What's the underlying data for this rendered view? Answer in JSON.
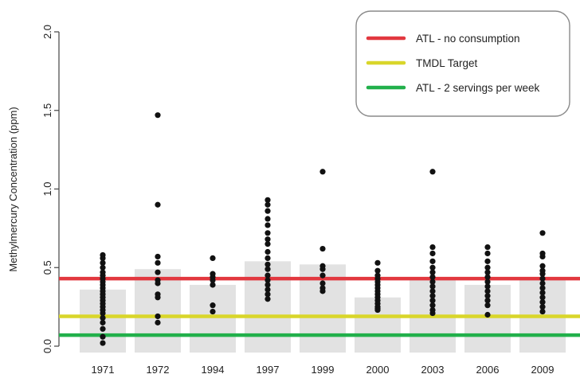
{
  "chart_data": {
    "type": "scatter",
    "ylabel": "Methylmercury Concentration (ppm)",
    "ylim": [
      0,
      2.0
    ],
    "yticks": [
      "0.0",
      "0.5",
      "1.0",
      "1.5",
      "2.0"
    ],
    "categories": [
      "1971",
      "1972",
      "1994",
      "1997",
      "1999",
      "2000",
      "2003",
      "2006",
      "2009"
    ],
    "bar_values": [
      0.36,
      0.49,
      0.39,
      0.54,
      0.52,
      0.31,
      0.42,
      0.39,
      0.42
    ],
    "points": [
      [
        0.58,
        0.56,
        0.53,
        0.5,
        0.47,
        0.45,
        0.43,
        0.41,
        0.39,
        0.37,
        0.35,
        0.33,
        0.31,
        0.29,
        0.27,
        0.25,
        0.23,
        0.21,
        0.18,
        0.15,
        0.11,
        0.06,
        0.02
      ],
      [
        1.47,
        0.9,
        0.57,
        0.53,
        0.47,
        0.42,
        0.4,
        0.33,
        0.31,
        0.19,
        0.15
      ],
      [
        0.56,
        0.46,
        0.44,
        0.42,
        0.39,
        0.26,
        0.22
      ],
      [
        0.93,
        0.9,
        0.86,
        0.81,
        0.77,
        0.72,
        0.68,
        0.65,
        0.6,
        0.56,
        0.52,
        0.49,
        0.45,
        0.42,
        0.39,
        0.36,
        0.33,
        0.3
      ],
      [
        1.11,
        0.62,
        0.51,
        0.49,
        0.45,
        0.4,
        0.37,
        0.35
      ],
      [
        0.53,
        0.48,
        0.45,
        0.43,
        0.41,
        0.39,
        0.37,
        0.35,
        0.33,
        0.31,
        0.29,
        0.27,
        0.25,
        0.24,
        0.23
      ],
      [
        1.11,
        0.63,
        0.59,
        0.54,
        0.5,
        0.47,
        0.44,
        0.41,
        0.38,
        0.35,
        0.32,
        0.29,
        0.26,
        0.23,
        0.21
      ],
      [
        0.63,
        0.59,
        0.54,
        0.5,
        0.47,
        0.44,
        0.41,
        0.38,
        0.35,
        0.32,
        0.29,
        0.26,
        0.2
      ],
      [
        0.72,
        0.59,
        0.57,
        0.51,
        0.48,
        0.46,
        0.43,
        0.4,
        0.37,
        0.34,
        0.31,
        0.28,
        0.25,
        0.22
      ]
    ],
    "reference_lines": [
      {
        "name": "ATL - no consumption",
        "value": 0.43,
        "color": "#e2383f"
      },
      {
        "name": "TMDL Target",
        "value": 0.19,
        "color": "#d9d62a"
      },
      {
        "name": "ATL - 2 servings per week",
        "value": 0.07,
        "color": "#22b04b"
      }
    ],
    "legend_placement": "top-right",
    "colors": {
      "bar": "#e2e2e2",
      "point": "#111111",
      "axis": "#444444"
    }
  }
}
